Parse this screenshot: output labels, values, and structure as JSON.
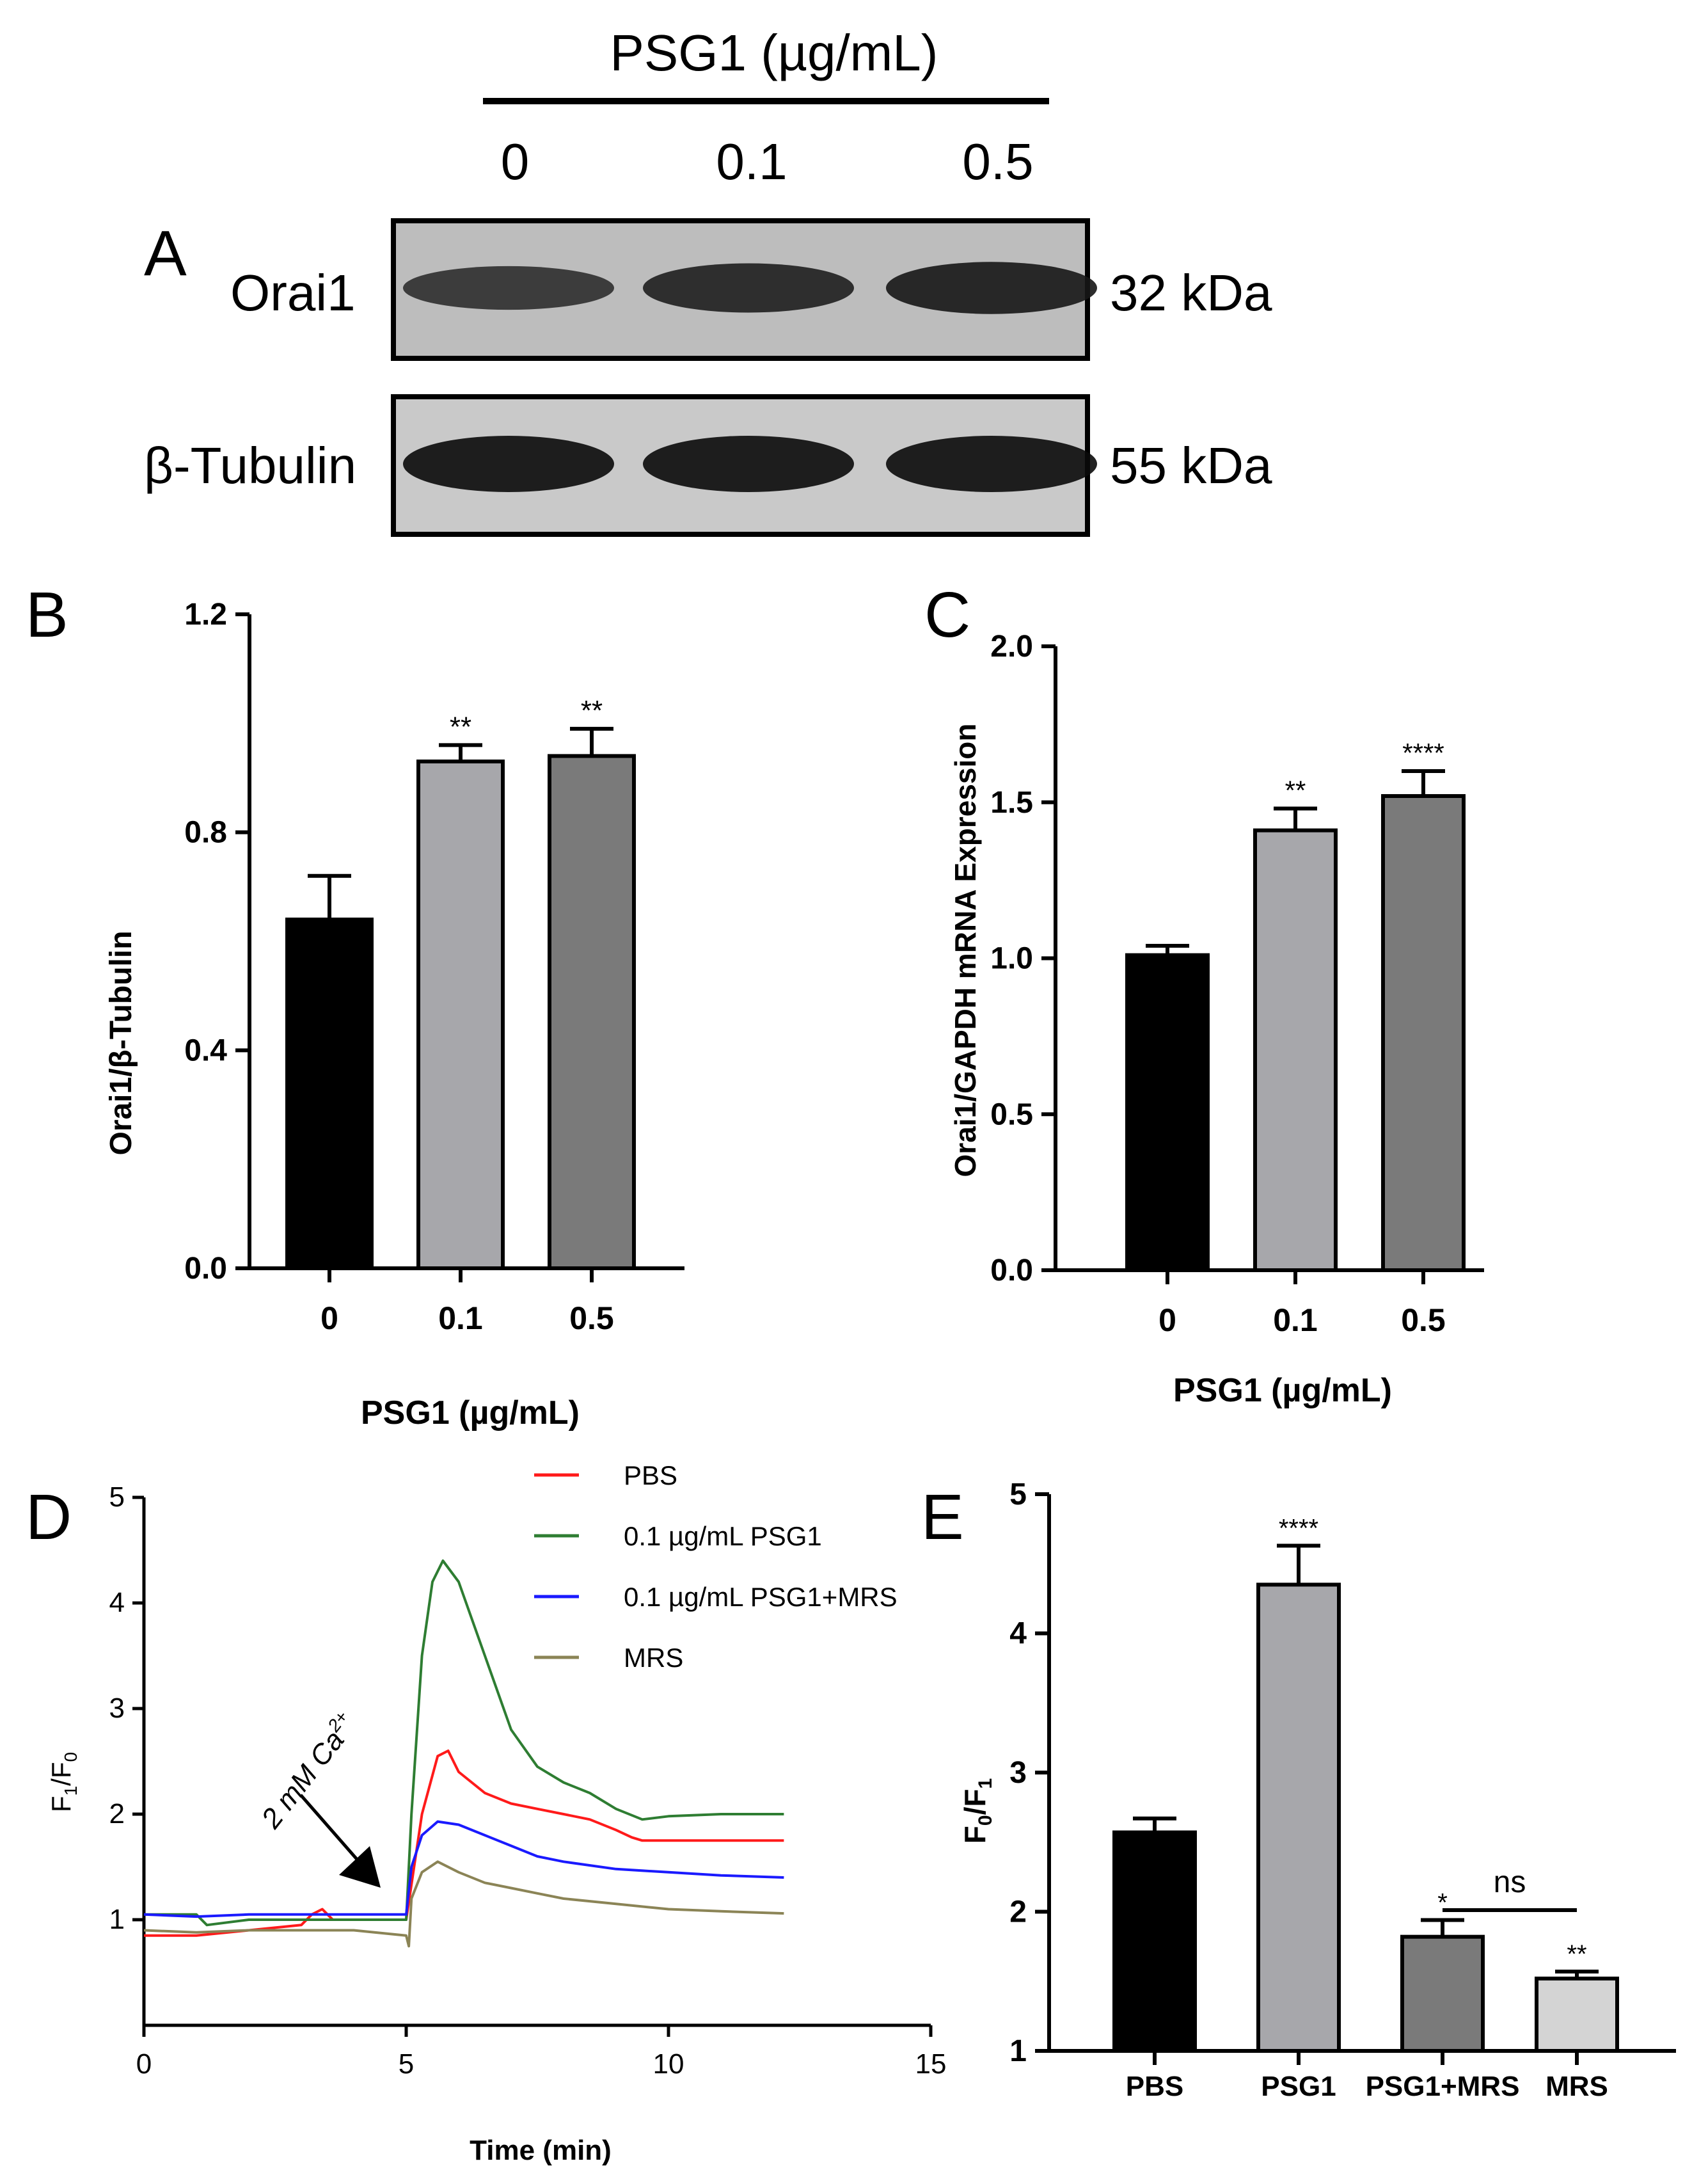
{
  "figure": {
    "panel_a": {
      "letter": "A",
      "header": "PSG1 (µg/mL)",
      "lanes": [
        "0",
        "0.1",
        "0.5"
      ],
      "blots": [
        {
          "label": "Orai1",
          "size": "32 kDa",
          "intensities": [
            0.55,
            0.75,
            0.85
          ]
        },
        {
          "label": "β-Tubulin",
          "size": "55 kDa",
          "intensities": [
            1.0,
            1.0,
            1.0
          ]
        }
      ]
    },
    "colors": {
      "black": "#000000",
      "light_gray": "#a7a7ab",
      "dark_gray": "#7a7a7a",
      "lightest_gray": "#d4d4d4",
      "red": "#ff1a1a",
      "green": "#2e7d32",
      "blue": "#1a1aff",
      "khaki": "#8b8456"
    }
  },
  "chart_data": [
    {
      "panel": "B",
      "type": "bar",
      "title": "",
      "xlabel": "PSG1 (µg/mL)",
      "ylabel": "Orai1/β-Tubulin",
      "categories": [
        "0",
        "0.1",
        "0.5"
      ],
      "values": [
        0.64,
        0.93,
        0.94
      ],
      "errors": [
        0.08,
        0.03,
        0.05
      ],
      "significance": [
        "",
        "**",
        "**"
      ],
      "ylim": [
        0,
        1.2
      ],
      "yticks": [
        "0.0",
        "0.4",
        "0.8",
        "1.2"
      ],
      "ytick_values": [
        0,
        0.4,
        0.8,
        1.2
      ]
    },
    {
      "panel": "C",
      "type": "bar",
      "title": "",
      "xlabel": "PSG1 (µg/mL)",
      "ylabel": "Orai1/GAPDH mRNA Expression",
      "categories": [
        "0",
        "0.1",
        "0.5"
      ],
      "values": [
        1.01,
        1.41,
        1.52
      ],
      "errors": [
        0.03,
        0.07,
        0.08
      ],
      "significance": [
        "",
        "**",
        "****"
      ],
      "ylim": [
        0,
        2.0
      ],
      "yticks": [
        "0.0",
        "0.5",
        "1.0",
        "1.5",
        "2.0"
      ],
      "ytick_values": [
        0,
        0.5,
        1.0,
        1.5,
        2.0
      ]
    },
    {
      "panel": "D",
      "type": "line",
      "title": "",
      "xlabel": "Time (min)",
      "ylabel_main": "F",
      "ylabel_sub1": "1",
      "ylabel_sep": "/F",
      "ylabel_sub2": "0",
      "xlim": [
        0,
        15
      ],
      "ylim": [
        0,
        5
      ],
      "xticks": [
        "0",
        "5",
        "10",
        "15"
      ],
      "xtick_values": [
        0,
        5,
        10,
        15
      ],
      "yticks": [
        "1",
        "2",
        "3",
        "4",
        "5"
      ],
      "ytick_values": [
        1,
        2,
        3,
        4,
        5
      ],
      "annotation": {
        "text": "2 mM Ca",
        "sup": "2+",
        "at_x": 5.0,
        "at_y": 1.0
      },
      "legend_position": "top-right",
      "series": [
        {
          "name": "PBS",
          "x": [
            0,
            1,
            2,
            3,
            3.2,
            3.4,
            3.6,
            4,
            4.5,
            5,
            5.3,
            5.6,
            5.8,
            6,
            6.5,
            7,
            7.5,
            8,
            8.5,
            9,
            9.3,
            9.5,
            10,
            11,
            12.2
          ],
          "y": [
            0.85,
            0.85,
            0.9,
            0.95,
            1.05,
            1.1,
            1.0,
            1.0,
            1.0,
            1.0,
            2.0,
            2.55,
            2.6,
            2.4,
            2.2,
            2.1,
            2.05,
            2.0,
            1.95,
            1.85,
            1.78,
            1.75,
            1.75,
            1.75,
            1.75
          ]
        },
        {
          "name": "0.1 µg/mL PSG1",
          "x": [
            0,
            1,
            1.2,
            2,
            3,
            4,
            4.5,
            5,
            5.1,
            5.3,
            5.5,
            5.7,
            6,
            6.5,
            7,
            7.5,
            8,
            8.5,
            9,
            9.5,
            10,
            11,
            12.2
          ],
          "y": [
            1.05,
            1.05,
            0.95,
            1.0,
            1.0,
            1.0,
            1.0,
            1.0,
            2.0,
            3.5,
            4.2,
            4.4,
            4.2,
            3.5,
            2.8,
            2.45,
            2.3,
            2.2,
            2.05,
            1.95,
            1.98,
            2.0,
            2.0
          ]
        },
        {
          "name": "0.1 µg/mL PSG1+MRS",
          "x": [
            0,
            1,
            2,
            3,
            4,
            5,
            5.1,
            5.3,
            5.6,
            6,
            6.5,
            7,
            7.5,
            8,
            9,
            10,
            11,
            12.2
          ],
          "y": [
            1.05,
            1.03,
            1.05,
            1.05,
            1.05,
            1.05,
            1.5,
            1.8,
            1.93,
            1.9,
            1.8,
            1.7,
            1.6,
            1.55,
            1.48,
            1.45,
            1.42,
            1.4
          ]
        },
        {
          "name": "MRS",
          "x": [
            0,
            1,
            2,
            3,
            4,
            5,
            5.05,
            5.1,
            5.3,
            5.6,
            6,
            6.5,
            7,
            7.5,
            8,
            9,
            10,
            11,
            12.2
          ],
          "y": [
            0.9,
            0.88,
            0.9,
            0.9,
            0.9,
            0.85,
            0.75,
            1.2,
            1.45,
            1.55,
            1.45,
            1.35,
            1.3,
            1.25,
            1.2,
            1.15,
            1.1,
            1.08,
            1.06
          ]
        }
      ]
    },
    {
      "panel": "E",
      "type": "bar",
      "title": "",
      "xlabel": "",
      "ylabel_main": "F",
      "ylabel_sub1": "0",
      "ylabel_sep": "/F",
      "ylabel_sub2": "1",
      "categories": [
        "PBS",
        "PSG1",
        "PSG1+MRS",
        "MRS"
      ],
      "values": [
        2.57,
        4.35,
        1.82,
        1.52
      ],
      "errors": [
        0.1,
        0.28,
        0.12,
        0.05
      ],
      "significance": [
        "",
        "****",
        "*",
        "**"
      ],
      "bracket": {
        "from": 2,
        "to": 3,
        "label": "ns"
      },
      "ylim": [
        1,
        5
      ],
      "yticks": [
        "1",
        "2",
        "3",
        "4",
        "5"
      ],
      "ytick_values": [
        1,
        2,
        3,
        4,
        5
      ]
    }
  ]
}
